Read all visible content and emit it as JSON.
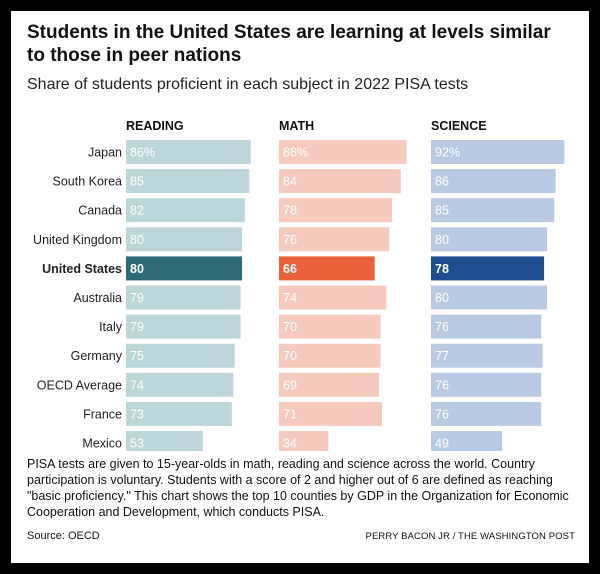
{
  "header": {
    "title": "Students in the United States are learning at levels similar to those in peer nations",
    "subtitle": "Share of students proficient in each subject in 2022 PISA tests"
  },
  "colors": {
    "reading_light": "#bcd6da",
    "reading_highlight": "#2e6b77",
    "math_light": "#f6cbbd",
    "math_highlight": "#e8613a",
    "science_light": "#b8cbe3",
    "science_highlight": "#1d4d8f",
    "label_text_light": "#ffffff",
    "label_text_highlight": "#ffffff"
  },
  "chart_data": {
    "type": "bar",
    "orientation": "horizontal",
    "categories": [
      "Japan",
      "South Korea",
      "Canada",
      "United Kingdom",
      "United States",
      "Australia",
      "Italy",
      "Germany",
      "OECD Average",
      "France",
      "Mexico"
    ],
    "highlight": "United States",
    "value_suffix_first_row": "%",
    "xlim": [
      0,
      100
    ],
    "series": [
      {
        "name": "READING",
        "values": [
          86,
          85,
          82,
          80,
          80,
          79,
          79,
          75,
          74,
          73,
          53
        ]
      },
      {
        "name": "MATH",
        "values": [
          88,
          84,
          78,
          76,
          66,
          74,
          70,
          70,
          69,
          71,
          34
        ]
      },
      {
        "name": "SCIENCE",
        "values": [
          92,
          86,
          85,
          80,
          78,
          80,
          76,
          77,
          76,
          76,
          49
        ]
      }
    ]
  },
  "footer": {
    "note": "PISA tests are given to 15-year-olds in math, reading and science across the world. Country participation is voluntary. Students with a score of 2 and higher out of 6 are defined as reaching \"basic proficiency.\" This chart shows the top 10 counties by GDP in the Organization for Economic Cooperation and Development, which conducts PISA.",
    "source": "Source: OECD",
    "credit": "PERRY BACON JR / THE WASHINGTON POST"
  }
}
